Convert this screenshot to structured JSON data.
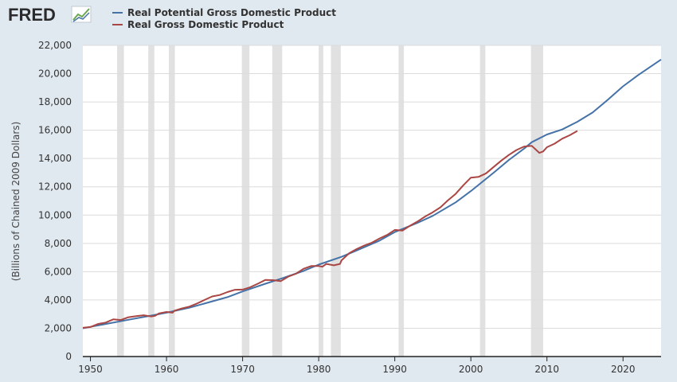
{
  "brand": {
    "name": "FRED",
    "logo_icon": "line-chart-icon"
  },
  "chart_data": {
    "type": "line",
    "title": "",
    "xlabel": "",
    "ylabel": "(Billions of Chained 2009 Dollars)",
    "xlim": [
      1949,
      2025
    ],
    "ylim": [
      0,
      22000
    ],
    "x_ticks": [
      {
        "value": 1950,
        "label": "1950"
      },
      {
        "value": 1960,
        "label": "1960"
      },
      {
        "value": 1970,
        "label": "1970"
      },
      {
        "value": 1980,
        "label": "1980"
      },
      {
        "value": 1990,
        "label": "1990"
      },
      {
        "value": 2000,
        "label": "2000"
      },
      {
        "value": 2010,
        "label": "2010"
      },
      {
        "value": 2020,
        "label": "2020"
      }
    ],
    "y_ticks": [
      {
        "value": 0,
        "label": "0"
      },
      {
        "value": 2000,
        "label": "2,000"
      },
      {
        "value": 4000,
        "label": "4,000"
      },
      {
        "value": 6000,
        "label": "6,000"
      },
      {
        "value": 8000,
        "label": "8,000"
      },
      {
        "value": 10000,
        "label": "10,000"
      },
      {
        "value": 12000,
        "label": "12,000"
      },
      {
        "value": 14000,
        "label": "14,000"
      },
      {
        "value": 16000,
        "label": "16,000"
      },
      {
        "value": 18000,
        "label": "18,000"
      },
      {
        "value": 20000,
        "label": "20,000"
      },
      {
        "value": 22000,
        "label": "22,000"
      }
    ],
    "grid": true,
    "legend_position": "top-left",
    "recessions": [
      [
        1953.5,
        1954.4
      ],
      [
        1957.6,
        1958.4
      ],
      [
        1960.3,
        1961.1
      ],
      [
        1969.9,
        1970.9
      ],
      [
        1973.9,
        1975.2
      ],
      [
        1980.0,
        1980.6
      ],
      [
        1981.6,
        1982.9
      ],
      [
        1990.5,
        1991.2
      ],
      [
        2001.2,
        2001.9
      ],
      [
        2007.9,
        2009.5
      ]
    ],
    "series": [
      {
        "name": "Real Potential Gross Domestic Product",
        "color": "#4572a7",
        "x": [
          1949,
          1950,
          1952,
          1955,
          1958,
          1960,
          1963,
          1965,
          1968,
          1970,
          1973,
          1975,
          1978,
          1980,
          1983,
          1985,
          1988,
          1990,
          1993,
          1995,
          1998,
          2000,
          2003,
          2005,
          2007,
          2008,
          2010,
          2012,
          2014,
          2016,
          2018,
          2020,
          2022,
          2025
        ],
        "y": [
          2000,
          2100,
          2300,
          2600,
          2900,
          3100,
          3450,
          3750,
          4200,
          4600,
          5150,
          5500,
          6050,
          6500,
          7050,
          7500,
          8200,
          8800,
          9450,
          9950,
          10900,
          11700,
          13000,
          13900,
          14700,
          15150,
          15700,
          16050,
          16600,
          17250,
          18150,
          19100,
          19900,
          21000
        ]
      },
      {
        "name": "Real Gross Domestic Product",
        "color": "#aa4643",
        "x": [
          1949,
          1950,
          1951,
          1952,
          1953,
          1954,
          1955,
          1956,
          1957,
          1958,
          1958.5,
          1959,
          1960,
          1960.8,
          1961,
          1962,
          1963,
          1964,
          1965,
          1966,
          1967,
          1968,
          1969,
          1970,
          1971,
          1972,
          1973,
          1974,
          1975,
          1976,
          1977,
          1978,
          1979,
          1980,
          1980.5,
          1981,
          1981.5,
          1982,
          1982.8,
          1983,
          1984,
          1985,
          1986,
          1987,
          1988,
          1989,
          1990,
          1991,
          1992,
          1993,
          1994,
          1995,
          1996,
          1997,
          1998,
          1999,
          2000,
          2001,
          2002,
          2003,
          2004,
          2005,
          2006,
          2007,
          2008,
          2009,
          2009.5,
          2010,
          2011,
          2012,
          2013,
          2014
        ],
        "y": [
          2030,
          2090,
          2300,
          2400,
          2630,
          2580,
          2780,
          2850,
          2920,
          2830,
          2880,
          3050,
          3150,
          3100,
          3230,
          3400,
          3530,
          3750,
          4000,
          4250,
          4350,
          4560,
          4720,
          4730,
          4900,
          5150,
          5420,
          5400,
          5330,
          5650,
          5850,
          6200,
          6400,
          6400,
          6350,
          6550,
          6500,
          6450,
          6550,
          6800,
          7300,
          7600,
          7850,
          8050,
          8350,
          8600,
          8950,
          8900,
          9250,
          9550,
          9900,
          10200,
          10550,
          11050,
          11500,
          12100,
          12650,
          12700,
          12950,
          13400,
          13850,
          14250,
          14600,
          14850,
          14900,
          14400,
          14500,
          14800,
          15050,
          15400,
          15650,
          15950
        ]
      }
    ]
  }
}
